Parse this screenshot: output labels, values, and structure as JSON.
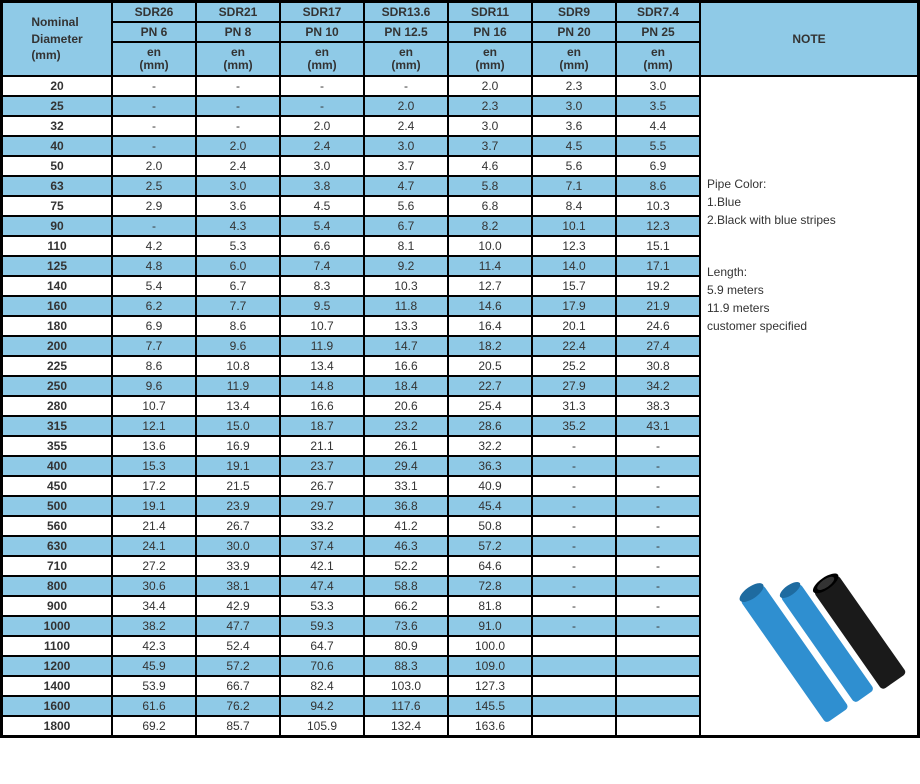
{
  "colors": {
    "header_bg": "#8fcae7",
    "alt_row_bg": "#8fcae7",
    "border": "#000000",
    "pipe_blue": "#2f8fd0",
    "pipe_black": "#1a1a1a"
  },
  "header": {
    "diameter_label1": "Nominal",
    "diameter_label2": "Diameter",
    "diameter_label3": "(mm)",
    "note_label": "NOTE",
    "sdr": [
      "SDR26",
      "SDR21",
      "SDR17",
      "SDR13.6",
      "SDR11",
      "SDR9",
      "SDR7.4"
    ],
    "pn": [
      "PN  6",
      "PN  8",
      "PN  10",
      "PN  12.5",
      "PN  16",
      "PN  20",
      "PN  25"
    ],
    "en_label": "en",
    "en_unit": "(mm)"
  },
  "rows": [
    {
      "d": "20",
      "v": [
        "-",
        "-",
        "-",
        "-",
        "2.0",
        "2.3",
        "3.0"
      ],
      "alt": false
    },
    {
      "d": "25",
      "v": [
        "-",
        "-",
        "-",
        "2.0",
        "2.3",
        "3.0",
        "3.5"
      ],
      "alt": true
    },
    {
      "d": "32",
      "v": [
        "-",
        "-",
        "2.0",
        "2.4",
        "3.0",
        "3.6",
        "4.4"
      ],
      "alt": false
    },
    {
      "d": "40",
      "v": [
        "-",
        "2.0",
        "2.4",
        "3.0",
        "3.7",
        "4.5",
        "5.5"
      ],
      "alt": true
    },
    {
      "d": "50",
      "v": [
        "2.0",
        "2.4",
        "3.0",
        "3.7",
        "4.6",
        "5.6",
        "6.9"
      ],
      "alt": false
    },
    {
      "d": "63",
      "v": [
        "2.5",
        "3.0",
        "3.8",
        "4.7",
        "5.8",
        "7.1",
        "8.6"
      ],
      "alt": true
    },
    {
      "d": "75",
      "v": [
        "2.9",
        "3.6",
        "4.5",
        "5.6",
        "6.8",
        "8.4",
        "10.3"
      ],
      "alt": false
    },
    {
      "d": "90",
      "v": [
        "-",
        "4.3",
        "5.4",
        "6.7",
        "8.2",
        "10.1",
        "12.3"
      ],
      "alt": true
    },
    {
      "d": "110",
      "v": [
        "4.2",
        "5.3",
        "6.6",
        "8.1",
        "10.0",
        "12.3",
        "15.1"
      ],
      "alt": false
    },
    {
      "d": "125",
      "v": [
        "4.8",
        "6.0",
        "7.4",
        "9.2",
        "11.4",
        "14.0",
        "17.1"
      ],
      "alt": true
    },
    {
      "d": "140",
      "v": [
        "5.4",
        "6.7",
        "8.3",
        "10.3",
        "12.7",
        "15.7",
        "19.2"
      ],
      "alt": false
    },
    {
      "d": "160",
      "v": [
        "6.2",
        "7.7",
        "9.5",
        "11.8",
        "14.6",
        "17.9",
        "21.9"
      ],
      "alt": true
    },
    {
      "d": "180",
      "v": [
        "6.9",
        "8.6",
        "10.7",
        "13.3",
        "16.4",
        "20.1",
        "24.6"
      ],
      "alt": false
    },
    {
      "d": "200",
      "v": [
        "7.7",
        "9.6",
        "11.9",
        "14.7",
        "18.2",
        "22.4",
        "27.4"
      ],
      "alt": true
    },
    {
      "d": "225",
      "v": [
        "8.6",
        "10.8",
        "13.4",
        "16.6",
        "20.5",
        "25.2",
        "30.8"
      ],
      "alt": false
    },
    {
      "d": "250",
      "v": [
        "9.6",
        "11.9",
        "14.8",
        "18.4",
        "22.7",
        "27.9",
        "34.2"
      ],
      "alt": true
    },
    {
      "d": "280",
      "v": [
        "10.7",
        "13.4",
        "16.6",
        "20.6",
        "25.4",
        "31.3",
        "38.3"
      ],
      "alt": false
    },
    {
      "d": "315",
      "v": [
        "12.1",
        "15.0",
        "18.7",
        "23.2",
        "28.6",
        "35.2",
        "43.1"
      ],
      "alt": true
    },
    {
      "d": "355",
      "v": [
        "13.6",
        "16.9",
        "21.1",
        "26.1",
        "32.2",
        "-",
        "-"
      ],
      "alt": false
    },
    {
      "d": "400",
      "v": [
        "15.3",
        "19.1",
        "23.7",
        "29.4",
        "36.3",
        "-",
        "-"
      ],
      "alt": true
    },
    {
      "d": "450",
      "v": [
        "17.2",
        "21.5",
        "26.7",
        "33.1",
        "40.9",
        "-",
        "-"
      ],
      "alt": false
    },
    {
      "d": "500",
      "v": [
        "19.1",
        "23.9",
        "29.7",
        "36.8",
        "45.4",
        "-",
        "-"
      ],
      "alt": true
    },
    {
      "d": "560",
      "v": [
        "21.4",
        "26.7",
        "33.2",
        "41.2",
        "50.8",
        "-",
        "-"
      ],
      "alt": false
    },
    {
      "d": "630",
      "v": [
        "24.1",
        "30.0",
        "37.4",
        "46.3",
        "57.2",
        "-",
        "-"
      ],
      "alt": true
    },
    {
      "d": "710",
      "v": [
        "27.2",
        "33.9",
        "42.1",
        "52.2",
        "64.6",
        "-",
        "-"
      ],
      "alt": false
    },
    {
      "d": "800",
      "v": [
        "30.6",
        "38.1",
        "47.4",
        "58.8",
        "72.8",
        "-",
        "-"
      ],
      "alt": true
    },
    {
      "d": "900",
      "v": [
        "34.4",
        "42.9",
        "53.3",
        "66.2",
        "81.8",
        "-",
        "-"
      ],
      "alt": false
    },
    {
      "d": "1000",
      "v": [
        "38.2",
        "47.7",
        "59.3",
        "73.6",
        "91.0",
        "-",
        "-"
      ],
      "alt": true
    },
    {
      "d": "1100",
      "v": [
        "42.3",
        "52.4",
        "64.7",
        "80.9",
        "100.0",
        "",
        ""
      ],
      "alt": false
    },
    {
      "d": "1200",
      "v": [
        "45.9",
        "57.2",
        "70.6",
        "88.3",
        "109.0",
        "",
        ""
      ],
      "alt": true
    },
    {
      "d": "1400",
      "v": [
        "53.9",
        "66.7",
        "82.4",
        "103.0",
        "127.3",
        "",
        ""
      ],
      "alt": false
    },
    {
      "d": "1600",
      "v": [
        "61.6",
        "76.2",
        "94.2",
        "117.6",
        "145.5",
        "",
        ""
      ],
      "alt": true
    },
    {
      "d": "1800",
      "v": [
        "69.2",
        "85.7",
        "105.9",
        "132.4",
        "163.6",
        "",
        ""
      ],
      "alt": false
    }
  ],
  "note": {
    "pipe_color_label": "Pipe Color:",
    "pipe_color_1": "1.Blue",
    "pipe_color_2": "2.Black with blue stripes",
    "length_label": "Length:",
    "length_1": "5.9  meters",
    "length_2": "11.9  meters",
    "length_3": "customer specified"
  }
}
